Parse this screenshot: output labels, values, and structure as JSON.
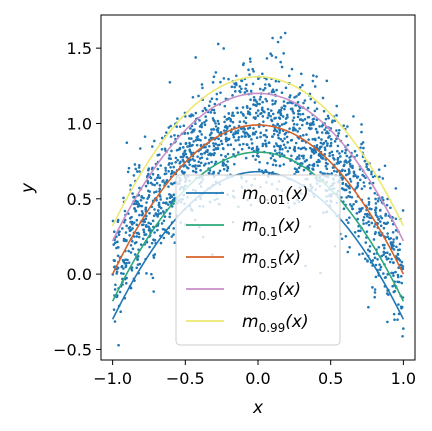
{
  "chart_data": {
    "type": "scatter",
    "title": "",
    "xlabel": "x",
    "ylabel": "y",
    "xlim": [
      -1.08,
      1.08
    ],
    "ylim": [
      -0.57,
      1.72
    ],
    "xticks": [
      -1.0,
      -0.5,
      0.0,
      0.5,
      1.0
    ],
    "xtick_labels": [
      "−1.0",
      "−0.5",
      "0.0",
      "0.5",
      "1.0"
    ],
    "yticks": [
      -0.5,
      0.0,
      0.5,
      1.0,
      1.5
    ],
    "ytick_labels": [
      "−0.5",
      "0.0",
      "0.5",
      "1.0",
      "1.5"
    ],
    "grid": false,
    "legend_position": "lower-center",
    "scatter": {
      "color": "#1f77b4",
      "description_of_distribution": "points around y = 1 - x^2 with noise",
      "x_range": [
        -1.0,
        1.0
      ],
      "center_curve": "1 - x^2",
      "noise_sd": 0.2
    },
    "series": [
      {
        "name": "0.01",
        "legend_text": "m",
        "legend_sub": "0.01",
        "legend_tail": "(x)",
        "color": "#1f77b4",
        "x": [
          -1.0,
          -0.75,
          -0.5,
          -0.25,
          0.0,
          0.25,
          0.5,
          0.75,
          1.0
        ],
        "y": [
          -0.3,
          0.14,
          0.44,
          0.62,
          0.68,
          0.62,
          0.44,
          0.14,
          -0.3
        ]
      },
      {
        "name": "0.1",
        "legend_text": "m",
        "legend_sub": "0.1",
        "legend_tail": "(x)",
        "color": "#2ca87a",
        "x": [
          -1.0,
          -0.75,
          -0.5,
          -0.25,
          0.0,
          0.25,
          0.5,
          0.75,
          1.0
        ],
        "y": [
          -0.18,
          0.27,
          0.57,
          0.75,
          0.81,
          0.75,
          0.57,
          0.27,
          -0.18
        ]
      },
      {
        "name": "0.5",
        "legend_text": "m",
        "legend_sub": "0.5",
        "legend_tail": "(x)",
        "color": "#d4622a",
        "x": [
          -1.0,
          -0.75,
          -0.5,
          -0.25,
          0.0,
          0.25,
          0.5,
          0.75,
          1.0
        ],
        "y": [
          0.0,
          0.44,
          0.75,
          0.93,
          0.99,
          0.93,
          0.75,
          0.44,
          0.0
        ]
      },
      {
        "name": "0.9",
        "legend_text": "m",
        "legend_sub": "0.9",
        "legend_tail": "(x)",
        "color": "#c98fc7",
        "x": [
          -1.0,
          -0.75,
          -0.5,
          -0.25,
          0.0,
          0.25,
          0.5,
          0.75,
          1.0
        ],
        "y": [
          0.22,
          0.66,
          0.97,
          1.15,
          1.2,
          1.15,
          0.97,
          0.66,
          0.22
        ]
      },
      {
        "name": "0.99",
        "legend_text": "m",
        "legend_sub": "0.99",
        "legend_tail": "(x)",
        "color": "#ece870",
        "x": [
          -1.0,
          -0.75,
          -0.5,
          -0.25,
          0.0,
          0.25,
          0.5,
          0.75,
          1.0
        ],
        "y": [
          0.32,
          0.77,
          1.08,
          1.26,
          1.31,
          1.26,
          1.08,
          0.77,
          0.32
        ]
      }
    ]
  }
}
